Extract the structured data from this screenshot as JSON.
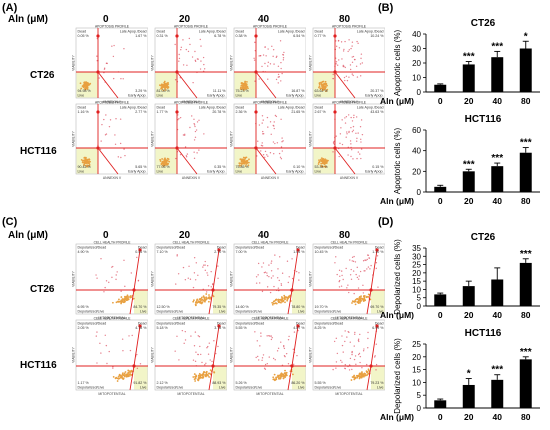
{
  "panels": {
    "A": "(A)",
    "B": "(B)",
    "C": "(C)",
    "D": "(D)"
  },
  "conc_header": {
    "label": "Aln (μM)",
    "values": [
      "0",
      "20",
      "40",
      "80"
    ]
  },
  "cell_lines": [
    "CT26",
    "HCT116"
  ],
  "flow_apoptosis": {
    "profile_title": "APOPTOSIS PROFILE",
    "xlabel": "ANNEXIN V",
    "ylabel": "VIABILITY",
    "quad_labels": {
      "ul": "Dead",
      "ur": "Late Apop./Dead",
      "ll": "Live",
      "lr": "Early Apop."
    },
    "rows": [
      {
        "cell": "CT26",
        "plots": [
          {
            "ul": "0.05 %",
            "ur": "1.67 %",
            "ll": "94.98 %",
            "lr": "3.29 %"
          },
          {
            "ul": "0.31 %",
            "ur": "6.78 %",
            "ll": "81.03 %",
            "lr": "11.11 %"
          },
          {
            "ul": "0.38 %",
            "ur": "6.54 %",
            "ll": "75.23 %",
            "lr": "16.87 %"
          },
          {
            "ul": "0.77 %",
            "ur": "10.24 %",
            "ll": "63.62 %",
            "lr": "20.37 %"
          }
        ]
      },
      {
        "cell": "HCT116",
        "plots": [
          {
            "ul": "1.16 %",
            "ur": "2.77 %",
            "ll": "90.42 %",
            "lr": "5.65 %"
          },
          {
            "ul": "1.77 %",
            "ur": "20.78 %",
            "ll": "77.05 %",
            "lr": "0.35 %"
          },
          {
            "ul": "2.36 %",
            "ur": "21.65 %",
            "ll": "75.85 %",
            "lr": "0.10 %"
          },
          {
            "ul": "2.67 %",
            "ur": "43.63 %",
            "ll": "53.34 %",
            "lr": "0.15 %"
          }
        ]
      }
    ]
  },
  "flow_mito": {
    "profile_title": "CELL HEALTH PROFILE",
    "xlabel": "MITOPOTENTIAL",
    "ylabel": "VIABILITY",
    "quad_labels": {
      "ul": "Depolarized/Dead",
      "ur": "Dead",
      "ll": "Depolarized/Live",
      "lr": "Live"
    },
    "rows": [
      {
        "cell": "CT26",
        "plots": [
          {
            "ul": "4.90 %",
            "ur": "0.45 %",
            "ll": "6.95 %",
            "lr": "84.70 %"
          },
          {
            "ul": "7.10 %",
            "ur": "2.70 %",
            "ll": "12.50 %",
            "lr": "79.35 %"
          },
          {
            "ul": "7.00 %",
            "ur": "1.05 %",
            "ll": "14.60 %",
            "lr": "78.80 %"
          },
          {
            "ul": "10.45 %",
            "ur": "1.10 %",
            "ll": "19.70 %",
            "lr": "69.70 %"
          }
        ]
      },
      {
        "cell": "HCT116",
        "plots": [
          {
            "ul": "2.05 %",
            "ur": "4.78 %",
            "ll": "1.17 %",
            "lr": "91.82 %"
          },
          {
            "ul": "5.18 %",
            "ur": "3.78 %",
            "ll": "2.12 %",
            "lr": "88.93 %"
          },
          {
            "ul": "5.55 %",
            "ur": "4.87 %",
            "ll": "5.26 %",
            "lr": "86.20 %"
          },
          {
            "ul": "8.25 %",
            "ur": "6.99 %",
            "ll": "5.55 %",
            "lr": "79.23 %"
          }
        ]
      }
    ]
  },
  "chart_data": [
    {
      "type": "bar",
      "title": "CT26",
      "xlabel": "Aln (μM)",
      "ylabel": "Apoptotic cells (%)",
      "categories": [
        "0",
        "20",
        "40",
        "80"
      ],
      "values": [
        5,
        19,
        24,
        30
      ],
      "errors": [
        0.6,
        2,
        4,
        5
      ],
      "significance": [
        "",
        "***",
        "***",
        "*"
      ],
      "ylim": [
        0,
        40
      ],
      "yticks": [
        0,
        10,
        20,
        30,
        40
      ]
    },
    {
      "type": "bar",
      "title": "HCT116",
      "xlabel": "Aln (μM)",
      "ylabel": "Apoptotic cells (%)",
      "categories": [
        "0",
        "20",
        "40",
        "80"
      ],
      "values": [
        5,
        20,
        25,
        38
      ],
      "errors": [
        1.5,
        2,
        3,
        5
      ],
      "significance": [
        "",
        "***",
        "***",
        "***"
      ],
      "ylim": [
        0,
        60
      ],
      "yticks": [
        0,
        20,
        40,
        60
      ]
    },
    {
      "type": "bar",
      "title": "CT26",
      "xlabel": "Aln (μM)",
      "ylabel": "Depolarized cells (%)",
      "categories": [
        "0",
        "20",
        "40",
        "80"
      ],
      "values": [
        7,
        12,
        16,
        26
      ],
      "errors": [
        0.8,
        3,
        7,
        2.5
      ],
      "significance": [
        "",
        "",
        "",
        "***"
      ],
      "ylim": [
        0,
        35
      ],
      "yticks": [
        0,
        5,
        10,
        15,
        20,
        25,
        30,
        35
      ]
    },
    {
      "type": "bar",
      "title": "HCT116",
      "xlabel": "Aln (μM)",
      "ylabel": "Depolarized cells (%)",
      "categories": [
        "0",
        "20",
        "40",
        "80"
      ],
      "values": [
        3,
        9,
        11,
        19
      ],
      "errors": [
        0.5,
        2.5,
        2,
        1
      ],
      "significance": [
        "",
        "*",
        "***",
        "***"
      ],
      "ylim": [
        0,
        25
      ],
      "yticks": [
        0,
        5,
        10,
        15,
        20,
        25
      ]
    }
  ],
  "colors": {
    "bar": "#000000",
    "gate_line": "#e02020",
    "live_gate": "#f2f5c8",
    "scatter_dense": "#e8a040",
    "scatter_sparse": "#e06070"
  }
}
